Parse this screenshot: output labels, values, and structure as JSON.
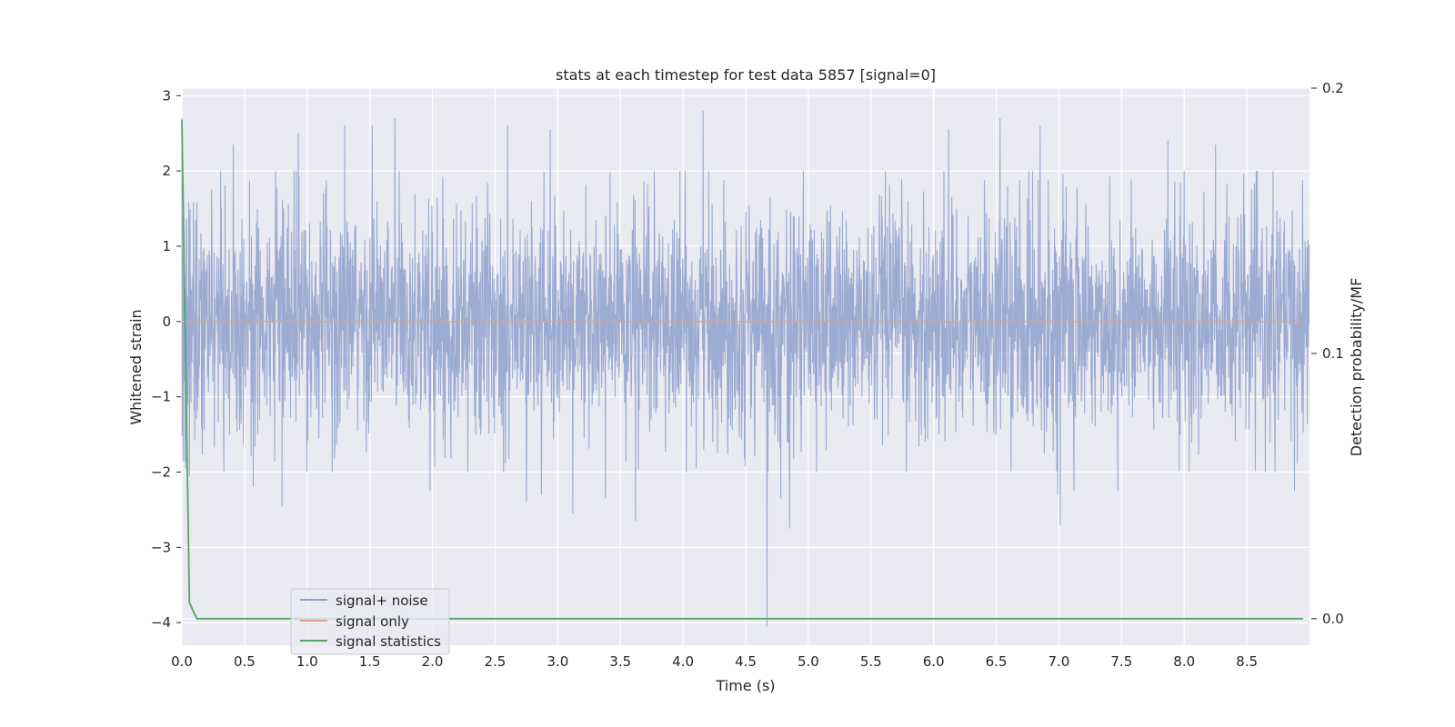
{
  "chart_data": {
    "type": "line",
    "title": "stats at each timestep for test data 5857 [signal=0]",
    "xlabel": "Time (s)",
    "ylabel": "Whitened strain",
    "y2label": "Detection probability/MF",
    "xlim": [
      0.0,
      9.0
    ],
    "ylim": [
      -4.3,
      3.1
    ],
    "y2lim": [
      -0.01,
      0.2
    ],
    "xticks": [
      "0.0",
      "0.5",
      "1.0",
      "1.5",
      "2.0",
      "2.5",
      "3.0",
      "3.5",
      "4.0",
      "4.5",
      "5.0",
      "5.5",
      "6.0",
      "6.5",
      "7.0",
      "7.5",
      "8.0",
      "8.5"
    ],
    "yticks": [
      "3",
      "2",
      "1",
      "0",
      "−1",
      "−2",
      "−3",
      "−4"
    ],
    "y2ticks": [
      "0.2",
      "0.1",
      "0.0"
    ],
    "grid": true,
    "legend_position": "lower-left",
    "series": [
      {
        "name": "signal+ noise",
        "axis": "left",
        "color": "#8da0cb",
        "sample_rate_hz": 400,
        "noise_sigma": 0.75,
        "notable_points": [
          {
            "x": 0.0,
            "y": 2.7
          },
          {
            "x": 0.01,
            "y": -1.85
          },
          {
            "x": 0.06,
            "y": -2.05
          },
          {
            "x": 0.41,
            "y": 2.35
          },
          {
            "x": 0.57,
            "y": -2.2
          },
          {
            "x": 0.8,
            "y": -2.45
          },
          {
            "x": 0.93,
            "y": 2.5
          },
          {
            "x": 1.3,
            "y": 2.6
          },
          {
            "x": 1.52,
            "y": 2.6
          },
          {
            "x": 1.7,
            "y": 2.7
          },
          {
            "x": 1.98,
            "y": -2.25
          },
          {
            "x": 2.6,
            "y": 2.6
          },
          {
            "x": 2.75,
            "y": -2.4
          },
          {
            "x": 2.87,
            "y": -2.3
          },
          {
            "x": 2.94,
            "y": 2.55
          },
          {
            "x": 3.12,
            "y": -2.55
          },
          {
            "x": 3.38,
            "y": -2.35
          },
          {
            "x": 3.62,
            "y": -2.65
          },
          {
            "x": 4.16,
            "y": 2.8
          },
          {
            "x": 4.67,
            "y": -4.05
          },
          {
            "x": 4.78,
            "y": -2.35
          },
          {
            "x": 4.85,
            "y": -2.75
          },
          {
            "x": 6.12,
            "y": 2.55
          },
          {
            "x": 6.53,
            "y": 2.7
          },
          {
            "x": 6.85,
            "y": 2.6
          },
          {
            "x": 6.99,
            "y": -2.3
          },
          {
            "x": 7.01,
            "y": -2.7
          },
          {
            "x": 7.12,
            "y": -2.25
          },
          {
            "x": 7.47,
            "y": -2.25
          },
          {
            "x": 7.87,
            "y": 2.4
          },
          {
            "x": 8.25,
            "y": 2.35
          },
          {
            "x": 8.88,
            "y": -2.25
          }
        ]
      },
      {
        "name": "signal only",
        "axis": "left",
        "color": "#e5a07e",
        "x": [
          0.0,
          8.95
        ],
        "y": [
          0.0,
          0.0
        ]
      },
      {
        "name": "signal statistics",
        "axis": "right",
        "color": "#55a868",
        "x": [
          0.0,
          0.06,
          0.12,
          0.5,
          1.0,
          2.0,
          3.0,
          4.0,
          5.0,
          6.0,
          7.0,
          8.0,
          8.95
        ],
        "y": [
          0.188,
          0.006,
          0.0,
          0.0,
          0.0,
          0.0,
          0.0,
          0.0,
          0.0,
          0.0,
          0.0,
          0.0,
          0.0
        ]
      }
    ]
  }
}
